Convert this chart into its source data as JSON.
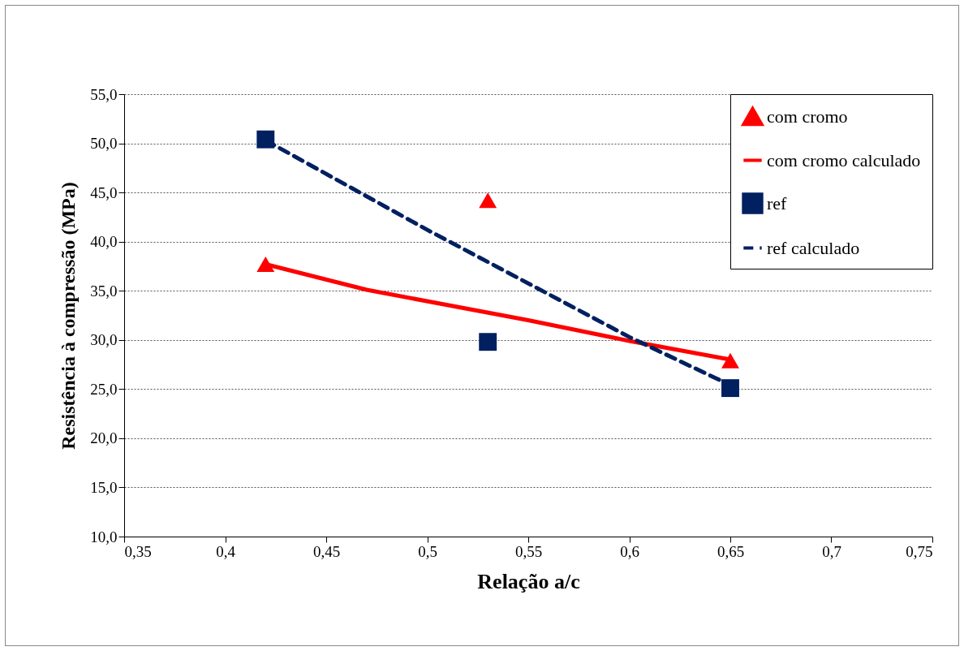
{
  "chart_data": {
    "type": "scatter",
    "xlabel": "Relação a/c",
    "ylabel": "Resistência à compressão (MPa)",
    "xlim": [
      0.35,
      0.75
    ],
    "ylim": [
      10,
      55
    ],
    "xticks": [
      {
        "value": 0.35,
        "label": "0,35"
      },
      {
        "value": 0.4,
        "label": "0,4"
      },
      {
        "value": 0.45,
        "label": "0,45"
      },
      {
        "value": 0.5,
        "label": "0,5"
      },
      {
        "value": 0.55,
        "label": "0,55"
      },
      {
        "value": 0.6,
        "label": "0,6"
      },
      {
        "value": 0.65,
        "label": "0,65"
      },
      {
        "value": 0.7,
        "label": "0,7"
      },
      {
        "value": 0.75,
        "label": "0,75"
      }
    ],
    "yticks": [
      {
        "value": 10,
        "label": "10,0"
      },
      {
        "value": 15,
        "label": "15,0"
      },
      {
        "value": 20,
        "label": "20,0"
      },
      {
        "value": 25,
        "label": "25,0"
      },
      {
        "value": 30,
        "label": "30,0"
      },
      {
        "value": 35,
        "label": "35,0"
      },
      {
        "value": 40,
        "label": "40,0"
      },
      {
        "value": 45,
        "label": "45,0"
      },
      {
        "value": 50,
        "label": "50,0"
      },
      {
        "value": 55,
        "label": "55,0"
      }
    ],
    "grid": "y",
    "legend": "top right",
    "series": [
      {
        "name": "com cromo",
        "type": "scatter",
        "marker": "triangle",
        "color": "#ff0000",
        "x": [
          0.42,
          0.53,
          0.65
        ],
        "values": [
          37.7,
          44.2,
          27.9
        ]
      },
      {
        "name": "com cromo calculado",
        "type": "line",
        "line_style": "solid",
        "color": "#ff0000",
        "x": [
          0.42,
          0.47,
          0.55,
          0.6,
          0.65
        ],
        "values": [
          37.7,
          35.1,
          32.0,
          29.9,
          28.0
        ]
      },
      {
        "name": "ref",
        "type": "scatter",
        "marker": "square",
        "color": "#002060",
        "x": [
          0.42,
          0.53,
          0.65
        ],
        "values": [
          50.4,
          29.8,
          25.1
        ]
      },
      {
        "name": "ref calculado",
        "type": "line",
        "line_style": "dashed",
        "color": "#002060",
        "x": [
          0.42,
          0.5,
          0.6,
          0.65
        ],
        "values": [
          50.3,
          41.2,
          30.3,
          25.4
        ]
      }
    ]
  }
}
